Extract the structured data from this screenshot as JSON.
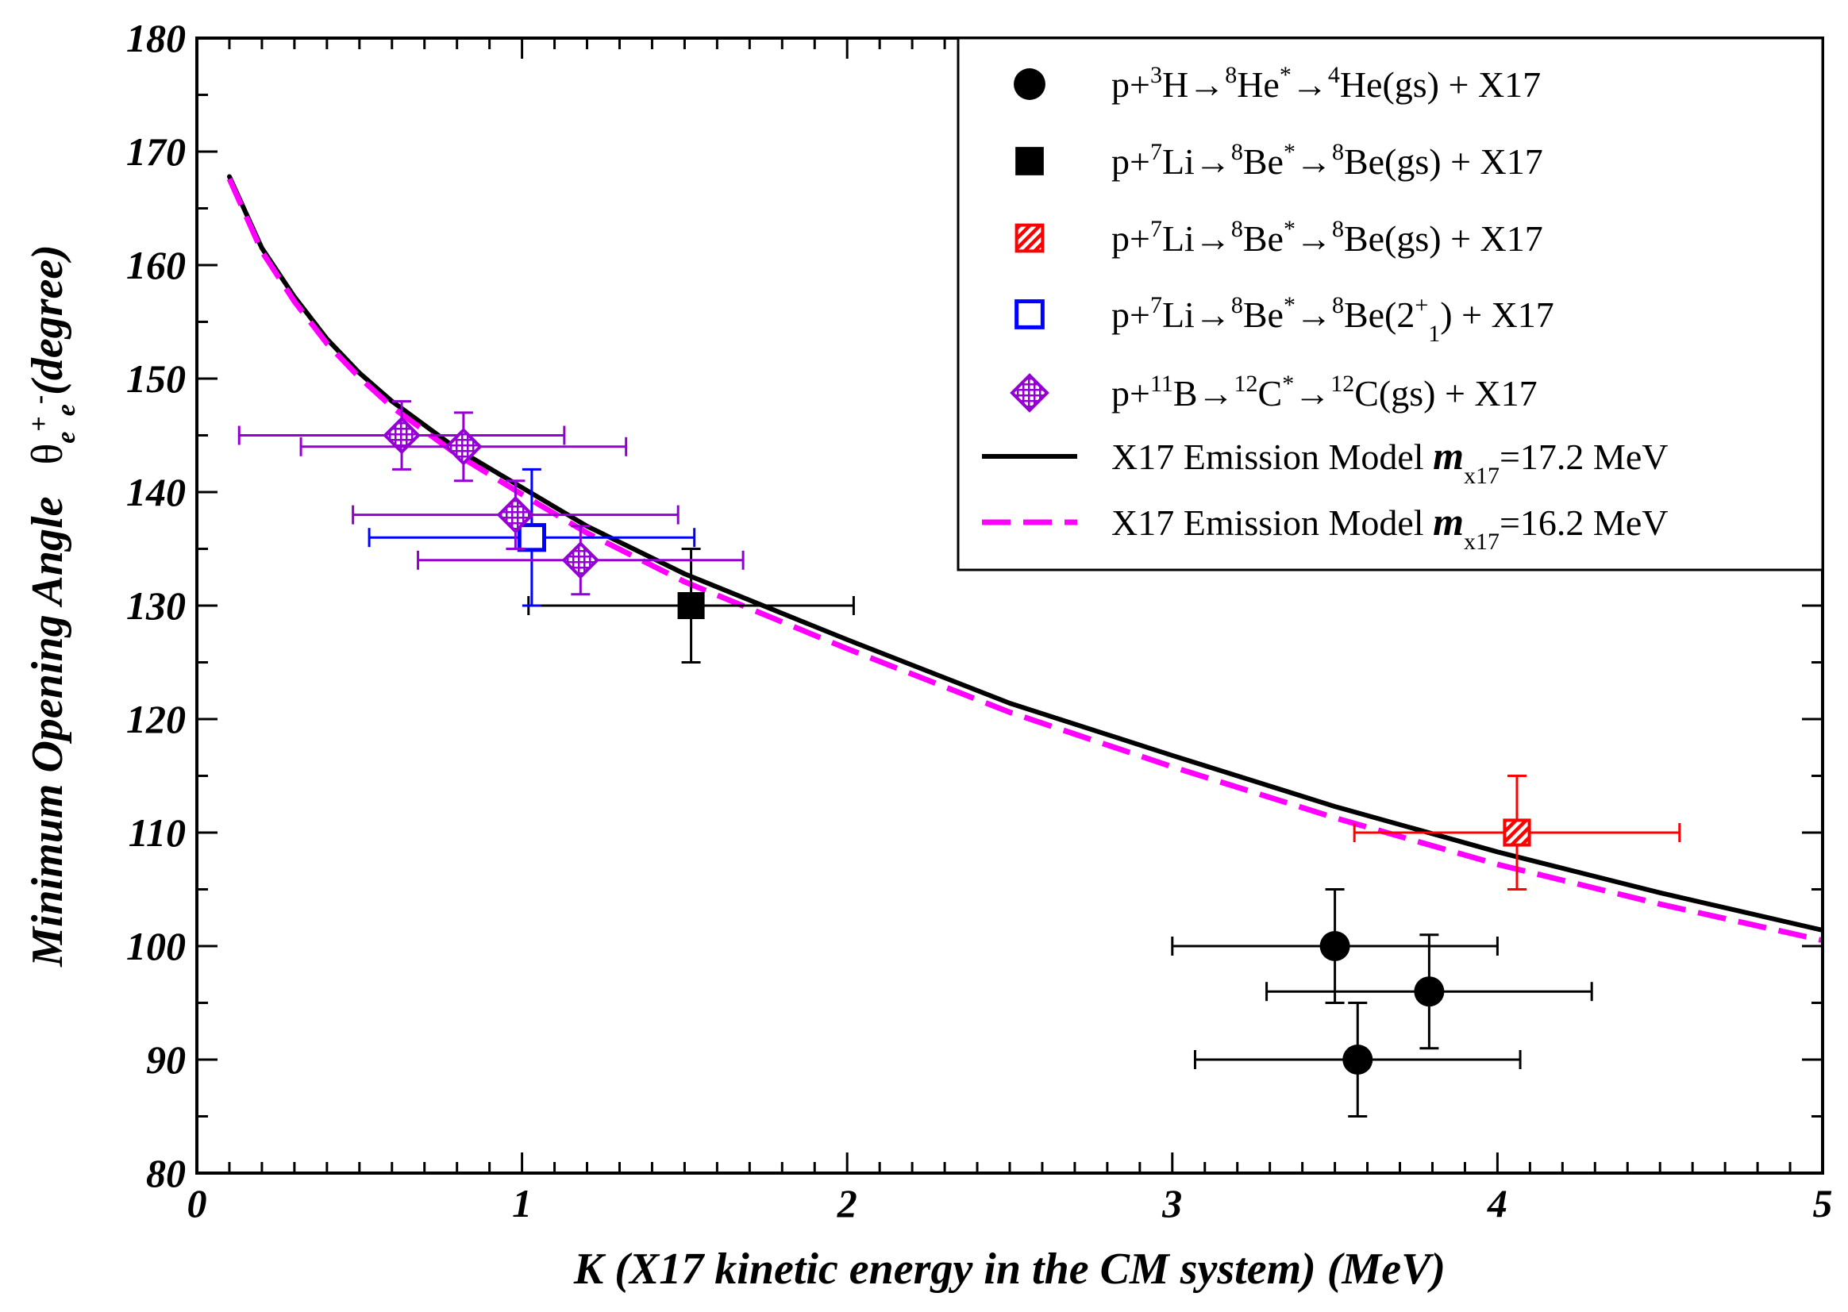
{
  "chart_data": {
    "type": "scatter",
    "title": "",
    "xlabel": "K (X17 kinetic energy in the CM system)  (MeV)",
    "ylabel": "Minimum Opening Angle",
    "ylabel_symbol": "θ",
    "ylabel_sub1": "e",
    "ylabel_sup1": "+",
    "ylabel_sub2": "e",
    "ylabel_sup2": "-",
    "ylabel_unit": "(degree)",
    "xlim": [
      0,
      5
    ],
    "ylim": [
      80,
      180
    ],
    "x_ticks": [
      "0",
      "1",
      "2",
      "3",
      "4",
      "5"
    ],
    "y_ticks": [
      "80",
      "90",
      "100",
      "110",
      "120",
      "130",
      "140",
      "150",
      "160",
      "170",
      "180"
    ],
    "grid": false,
    "legend_position": "top-right",
    "series": [
      {
        "name": "p+3H→8He*→4He(gs) + X17",
        "legend_parts": [
          {
            "t": "p+",
            "s": "n"
          },
          {
            "t": "3",
            "s": "sup"
          },
          {
            "t": "H→",
            "s": "n"
          },
          {
            "t": "8",
            "s": "sup"
          },
          {
            "t": "He",
            "s": "n"
          },
          {
            "t": "*",
            "s": "sup"
          },
          {
            "t": "→",
            "s": "n"
          },
          {
            "t": "4",
            "s": "sup"
          },
          {
            "t": "He(gs) + X17",
            "s": "n"
          }
        ],
        "marker": "filled-circle",
        "color": "#000000",
        "points": [
          {
            "x": 3.5,
            "y": 100,
            "xerr": 0.5,
            "yerr": 5
          },
          {
            "x": 3.79,
            "y": 96,
            "xerr": 0.5,
            "yerr": 5
          },
          {
            "x": 3.57,
            "y": 90,
            "xerr": 0.5,
            "yerr": 5
          }
        ]
      },
      {
        "name": "p+7Li→8Be*→8Be(gs) + X17",
        "legend_parts": [
          {
            "t": "p+",
            "s": "n"
          },
          {
            "t": "7",
            "s": "sup"
          },
          {
            "t": "Li→",
            "s": "n"
          },
          {
            "t": "8",
            "s": "sup"
          },
          {
            "t": "Be",
            "s": "n"
          },
          {
            "t": "*",
            "s": "sup"
          },
          {
            "t": "→",
            "s": "n"
          },
          {
            "t": "8",
            "s": "sup"
          },
          {
            "t": "Be(gs) + X17",
            "s": "n"
          }
        ],
        "marker": "filled-square",
        "color": "#000000",
        "points": [
          {
            "x": 1.52,
            "y": 130,
            "xerr": 0.5,
            "yerr": 5
          }
        ]
      },
      {
        "name": "p+7Li→8Be*→8Be(gs) + X17",
        "legend_parts": [
          {
            "t": "p+",
            "s": "n"
          },
          {
            "t": "7",
            "s": "sup"
          },
          {
            "t": "Li→",
            "s": "n"
          },
          {
            "t": "8",
            "s": "sup"
          },
          {
            "t": "Be",
            "s": "n"
          },
          {
            "t": "*",
            "s": "sup"
          },
          {
            "t": "→",
            "s": "n"
          },
          {
            "t": "8",
            "s": "sup"
          },
          {
            "t": "Be(gs) + X17",
            "s": "n"
          }
        ],
        "marker": "hatched-square",
        "color": "#ff0000",
        "points": [
          {
            "x": 4.06,
            "y": 110,
            "xerr": 0.5,
            "yerr": 5
          }
        ]
      },
      {
        "name": "p+7Li→8Be*→8Be(2+1) + X17",
        "legend_parts": [
          {
            "t": "p+",
            "s": "n"
          },
          {
            "t": "7",
            "s": "sup"
          },
          {
            "t": "Li→",
            "s": "n"
          },
          {
            "t": "8",
            "s": "sup"
          },
          {
            "t": "Be",
            "s": "n"
          },
          {
            "t": "*",
            "s": "sup"
          },
          {
            "t": "→",
            "s": "n"
          },
          {
            "t": "8",
            "s": "sup"
          },
          {
            "t": "Be(2",
            "s": "n"
          },
          {
            "t": "+",
            "s": "sup"
          },
          {
            "t": "1",
            "s": "sub"
          },
          {
            "t": ") + X17",
            "s": "n"
          }
        ],
        "marker": "open-square",
        "color": "#0000ff",
        "points": [
          {
            "x": 1.03,
            "y": 136,
            "xerr": 0.5,
            "yerr": 6
          }
        ]
      },
      {
        "name": "p+11B→12C*→12C(gs)  + X17",
        "legend_parts": [
          {
            "t": "p+",
            "s": "n"
          },
          {
            "t": "11",
            "s": "sup"
          },
          {
            "t": "B→",
            "s": "n"
          },
          {
            "t": "12",
            "s": "sup"
          },
          {
            "t": "C",
            "s": "n"
          },
          {
            "t": "*",
            "s": "sup"
          },
          {
            "t": "→",
            "s": "n"
          },
          {
            "t": "12",
            "s": "sup"
          },
          {
            "t": "C(gs)  + X17",
            "s": "n"
          }
        ],
        "marker": "hatched-diamond",
        "color": "#9400d3",
        "points": [
          {
            "x": 0.63,
            "y": 145,
            "xerr": 0.5,
            "yerr": 3
          },
          {
            "x": 0.82,
            "y": 144,
            "xerr": 0.5,
            "yerr": 3
          },
          {
            "x": 0.98,
            "y": 138,
            "xerr": 0.5,
            "yerr": 3
          },
          {
            "x": 1.18,
            "y": 134,
            "xerr": 0.5,
            "yerr": 3
          }
        ]
      },
      {
        "name": "X17 Emission Model mx17=17.2 MeV",
        "legend_parts": [
          {
            "t": "X17 Emission Model ",
            "s": "n"
          },
          {
            "t": "m",
            "s": "bi"
          },
          {
            "t": "x17",
            "s": "sub"
          },
          {
            "t": "=17.2 MeV",
            "s": "n"
          }
        ],
        "marker": "solid-line",
        "color": "#000000",
        "line": {
          "x": [
            0.1,
            0.2,
            0.3,
            0.4,
            0.5,
            0.6,
            0.8,
            1.0,
            1.2,
            1.5,
            2.0,
            2.5,
            3.0,
            3.5,
            4.0,
            4.5,
            5.0
          ],
          "y": [
            167.8,
            161.5,
            157.2,
            153.5,
            150.5,
            148.0,
            143.8,
            140.4,
            137.0,
            132.8,
            127.0,
            121.4,
            116.8,
            112.3,
            108.3,
            104.7,
            101.4
          ]
        }
      },
      {
        "name": "X17 Emission Model mx17=16.2 MeV",
        "legend_parts": [
          {
            "t": "X17 Emission Model ",
            "s": "n"
          },
          {
            "t": "m",
            "s": "bi"
          },
          {
            "t": "x17",
            "s": "sub"
          },
          {
            "t": "=16.2 MeV",
            "s": "n"
          }
        ],
        "marker": "dashed-line",
        "color": "#ff00ff",
        "line": {
          "x": [
            0.1,
            0.2,
            0.3,
            0.4,
            0.5,
            0.6,
            0.8,
            1.0,
            1.2,
            1.5,
            2.0,
            2.5,
            3.0,
            3.5,
            4.0,
            4.5,
            5.0
          ],
          "y": [
            167.6,
            161.2,
            156.8,
            153.1,
            150.1,
            147.5,
            143.3,
            139.8,
            136.4,
            132.1,
            126.2,
            120.6,
            115.8,
            111.3,
            107.2,
            103.7,
            100.5
          ]
        }
      }
    ]
  }
}
